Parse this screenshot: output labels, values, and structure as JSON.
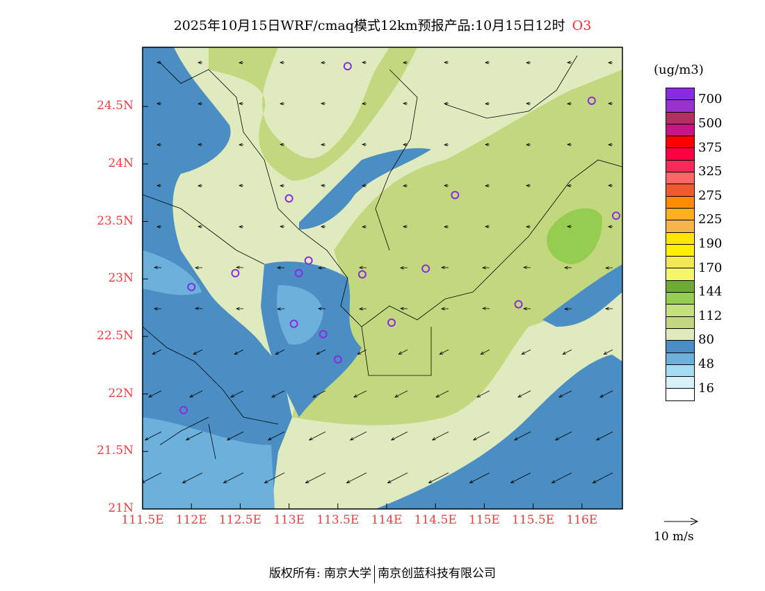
{
  "title": {
    "text": "2025年10月15日WRF/cmaq模式12km预报产品:10月15日12时",
    "species": "O3"
  },
  "axes": {
    "lat_labels": [
      "24.5N",
      "24N",
      "23.5N",
      "23N",
      "22.5N",
      "22N",
      "21.5N",
      "21N"
    ],
    "lat_values": [
      24.5,
      24,
      23.5,
      23,
      22.5,
      22,
      21.5,
      21
    ],
    "lon_labels": [
      "111.5E",
      "112E",
      "112.5E",
      "113E",
      "113.5E",
      "114E",
      "114.5E",
      "115E",
      "115.5E",
      "116E"
    ],
    "lon_values": [
      111.5,
      112,
      112.5,
      113,
      113.5,
      114,
      114.5,
      115,
      115.5,
      116
    ]
  },
  "colorbar": {
    "unit": "(ug/m3)",
    "colors": [
      "#8a2be2",
      "#9932cc",
      "#b03060",
      "#c71585",
      "#ff0000",
      "#ff0040",
      "#f52a5a",
      "#ff6666",
      "#f05a30",
      "#ff8c00",
      "#ffb020",
      "#f5b54a",
      "#ffe600",
      "#fff000",
      "#f2e65a",
      "#f5f76a",
      "#6eaa37",
      "#94cd50",
      "#c5e07f",
      "#c3d87e",
      "#e0eabf",
      "#4a8ec3",
      "#6cb0dc",
      "#a4dcf3",
      "#d8f0fa",
      "#ffffff"
    ],
    "labels": [
      "700",
      "500",
      "375",
      "325",
      "275",
      "225",
      "190",
      "170",
      "144",
      "112",
      "80",
      "48",
      "16"
    ]
  },
  "vector_legend": "10 m/s",
  "stations": [
    [
      113.6,
      24.85
    ],
    [
      116.1,
      24.55
    ],
    [
      113.0,
      23.7
    ],
    [
      114.7,
      23.73
    ],
    [
      116.35,
      23.55
    ],
    [
      112.45,
      23.05
    ],
    [
      113.1,
      23.05
    ],
    [
      113.2,
      23.16
    ],
    [
      113.75,
      23.04
    ],
    [
      114.4,
      23.09
    ],
    [
      112.0,
      22.93
    ],
    [
      113.05,
      22.61
    ],
    [
      113.35,
      22.52
    ],
    [
      114.05,
      22.62
    ],
    [
      115.35,
      22.78
    ],
    [
      113.5,
      22.3
    ],
    [
      111.92,
      21.86
    ]
  ],
  "footer": {
    "left": "版权所有: 南京大学",
    "right": "南京创蓝科技有限公司"
  }
}
